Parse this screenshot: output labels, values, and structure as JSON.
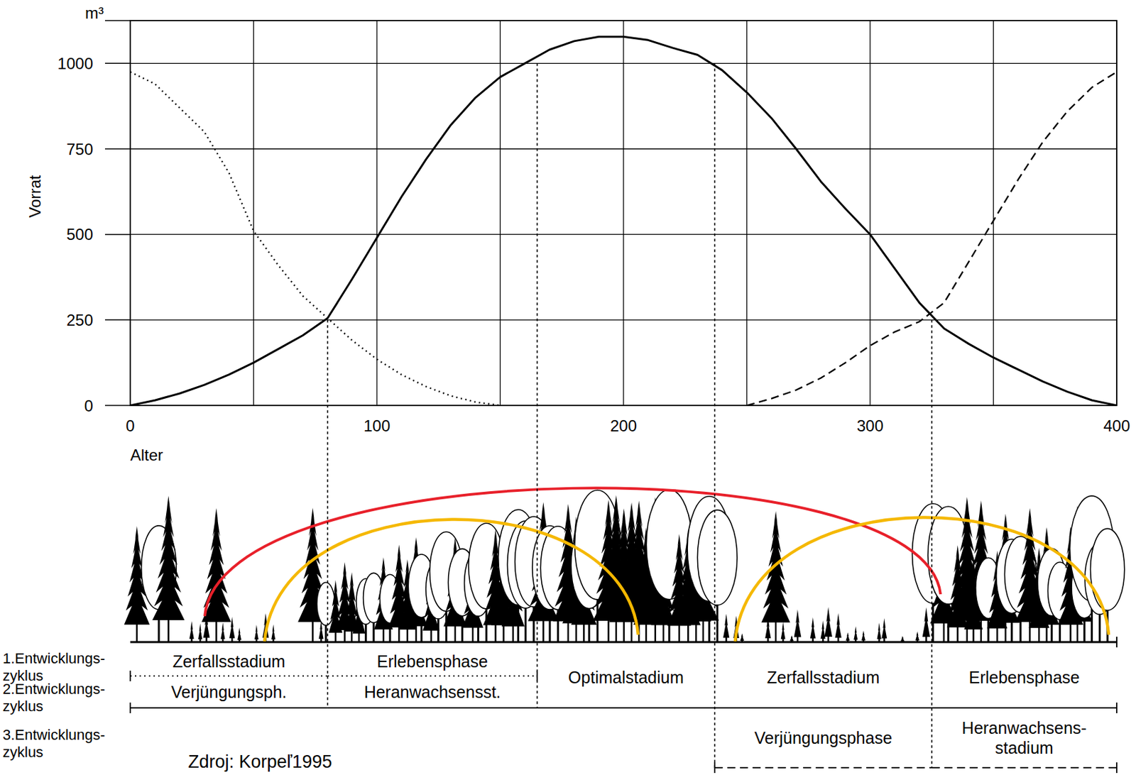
{
  "chart_data": {
    "type": "line",
    "ylabel": "Vorrat",
    "y_unit": "m³",
    "xlabel": "Alter",
    "xlim": [
      0,
      400
    ],
    "ylim": [
      0,
      1125
    ],
    "xticks": [
      0,
      100,
      200,
      300,
      400
    ],
    "x_minor_ticks": [
      50,
      150,
      250,
      350
    ],
    "yticks": [
      0,
      250,
      500,
      750,
      1000
    ],
    "grid": true,
    "x": [
      0,
      10,
      20,
      30,
      40,
      50,
      60,
      70,
      80,
      90,
      100,
      110,
      120,
      130,
      140,
      150,
      160,
      170,
      180,
      190,
      200,
      210,
      220,
      230,
      240,
      250,
      260,
      270,
      280,
      290,
      300,
      310,
      320,
      330,
      340,
      350,
      360,
      370,
      380,
      390,
      400
    ],
    "series": [
      {
        "color": "#000000",
        "line_style": "solid",
        "values": [
          0,
          15,
          35,
          60,
          90,
          125,
          165,
          205,
          255,
          370,
          490,
          610,
          720,
          820,
          900,
          960,
          1000,
          1040,
          1065,
          1078,
          1078,
          1068,
          1045,
          1025,
          980,
          915,
          840,
          750,
          655,
          575,
          500,
          400,
          300,
          225,
          180,
          140,
          105,
          70,
          40,
          15,
          0
        ]
      },
      {
        "color": "#000000",
        "line_style": "dotted",
        "values": [
          975,
          940,
          870,
          800,
          680,
          510,
          410,
          320,
          255,
          190,
          135,
          90,
          55,
          28,
          10,
          0,
          null,
          null,
          null,
          null,
          null,
          null,
          null,
          null,
          null,
          null,
          null,
          null,
          null,
          null,
          null,
          null,
          null,
          null,
          null,
          null,
          null,
          null,
          null,
          null,
          null
        ]
      },
      {
        "color": "#000000",
        "line_style": "dashed",
        "values": [
          null,
          null,
          null,
          null,
          null,
          null,
          null,
          null,
          null,
          null,
          null,
          null,
          null,
          null,
          null,
          null,
          null,
          null,
          null,
          null,
          null,
          null,
          null,
          null,
          null,
          0,
          20,
          45,
          80,
          125,
          175,
          215,
          245,
          300,
          420,
          540,
          660,
          770,
          860,
          930,
          975
        ]
      }
    ],
    "boundaries": [
      {
        "x": 80,
        "y": 250
      },
      {
        "x": 165,
        "y": 1000
      },
      {
        "x": 237,
        "y": 1000
      },
      {
        "x": 325,
        "y": 250
      }
    ],
    "cycles": [
      {
        "label": "1.Entwicklungs-zyklus",
        "line_style": "dotted",
        "stages": [
          {
            "label": "Zerfallsstadium",
            "start": 0,
            "end": 80
          },
          {
            "label": "Erlebensphase",
            "start": 80,
            "end": 165
          }
        ]
      },
      {
        "label": "2.Entwicklungs-zyklus",
        "line_style": "solid",
        "stages": [
          {
            "label": "Verjüngungsph.",
            "start": 0,
            "end": 80
          },
          {
            "label": "Heranwachsensst.",
            "start": 80,
            "end": 165
          },
          {
            "label": "Optimalstadium",
            "start": 165,
            "end": 237
          },
          {
            "label": "Zerfallsstadium",
            "start": 237,
            "end": 325
          },
          {
            "label": "Erlebensphase",
            "start": 325,
            "end": 400
          }
        ]
      },
      {
        "label": "3.Entwicklungs-zyklus",
        "line_style": "dashed",
        "stages": [
          {
            "label": "Verjüngungsphase",
            "start": 237,
            "end": 325
          },
          {
            "label": "Heranwachsens-stadium",
            "start": 325,
            "end": 400
          }
        ]
      }
    ],
    "source": "Zdroj: Korpeľ1995"
  }
}
